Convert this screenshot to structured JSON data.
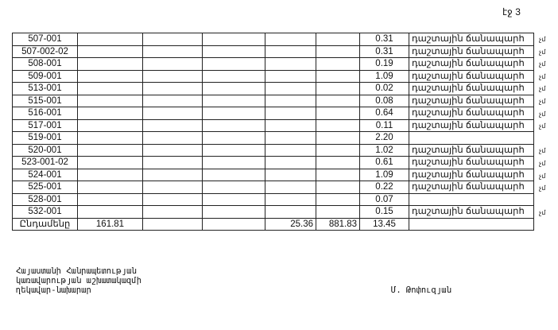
{
  "page_label": "էջ 3",
  "table": {
    "rows": [
      {
        "code": "507-001",
        "c1": "",
        "c2": "",
        "c3": "",
        "c4": "",
        "c5": "",
        "area": "0.31",
        "type": "դաշտային ճանապարհ",
        "mark": "չմ"
      },
      {
        "code": "507-002-02",
        "c1": "",
        "c2": "",
        "c3": "",
        "c4": "",
        "c5": "",
        "area": "0.31",
        "type": "դաշտային ճանապարհ",
        "mark": "չմ"
      },
      {
        "code": "508-001",
        "c1": "",
        "c2": "",
        "c3": "",
        "c4": "",
        "c5": "",
        "area": "0.19",
        "type": "դաշտային ճանապարհ",
        "mark": "չմ"
      },
      {
        "code": "509-001",
        "c1": "",
        "c2": "",
        "c3": "",
        "c4": "",
        "c5": "",
        "area": "1.09",
        "type": "դաշտային ճանապարհ",
        "mark": "չմ"
      },
      {
        "code": "513-001",
        "c1": "",
        "c2": "",
        "c3": "",
        "c4": "",
        "c5": "",
        "area": "0.02",
        "type": "դաշտային ճանապարհ",
        "mark": "չմ"
      },
      {
        "code": "515-001",
        "c1": "",
        "c2": "",
        "c3": "",
        "c4": "",
        "c5": "",
        "area": "0.08",
        "type": "դաշտային ճանապարհ",
        "mark": "չմ"
      },
      {
        "code": "516-001",
        "c1": "",
        "c2": "",
        "c3": "",
        "c4": "",
        "c5": "",
        "area": "0.64",
        "type": "դաշտային ճանապարհ",
        "mark": "չմ"
      },
      {
        "code": "517-001",
        "c1": "",
        "c2": "",
        "c3": "",
        "c4": "",
        "c5": "",
        "area": "0.11",
        "type": "դաշտային ճանապարհ",
        "mark": "չմ"
      },
      {
        "code": "519-001",
        "c1": "",
        "c2": "",
        "c3": "",
        "c4": "",
        "c5": "",
        "area": "2.20",
        "type": "",
        "mark": ""
      },
      {
        "code": "520-001",
        "c1": "",
        "c2": "",
        "c3": "",
        "c4": "",
        "c5": "",
        "area": "1.02",
        "type": "դաշտային ճանապարհ",
        "mark": "չմ"
      },
      {
        "code": "523-001-02",
        "c1": "",
        "c2": "",
        "c3": "",
        "c4": "",
        "c5": "",
        "area": "0.61",
        "type": "դաշտային ճանապարհ",
        "mark": "չմ"
      },
      {
        "code": "524-001",
        "c1": "",
        "c2": "",
        "c3": "",
        "c4": "",
        "c5": "",
        "area": "1.09",
        "type": "դաշտային ճանապարհ",
        "mark": "չմ"
      },
      {
        "code": "525-001",
        "c1": "",
        "c2": "",
        "c3": "",
        "c4": "",
        "c5": "",
        "area": "0.22",
        "type": "դաշտային ճանապարհ",
        "mark": "չմ"
      },
      {
        "code": "528-001",
        "c1": "",
        "c2": "",
        "c3": "",
        "c4": "",
        "c5": "",
        "area": "0.07",
        "type": "",
        "mark": ""
      },
      {
        "code": "532-001",
        "c1": "",
        "c2": "",
        "c3": "",
        "c4": "",
        "c5": "",
        "area": "0.15",
        "type": "դաշտային ճանապարհ",
        "mark": "չմ"
      },
      {
        "code": "Ընդամենը",
        "c1": "161.81",
        "c2": "",
        "c3": "",
        "c4": "25.36",
        "c5": "881.83",
        "area": "13.45",
        "type": "",
        "mark": ""
      }
    ]
  },
  "footer": {
    "position_lines": [
      "Հայաստանի Հանրապետության",
      "կառավարության աշխատակազմի",
      "ղեկավար-նախարար"
    ],
    "signatory": "Մ. Թոփուզյան"
  }
}
